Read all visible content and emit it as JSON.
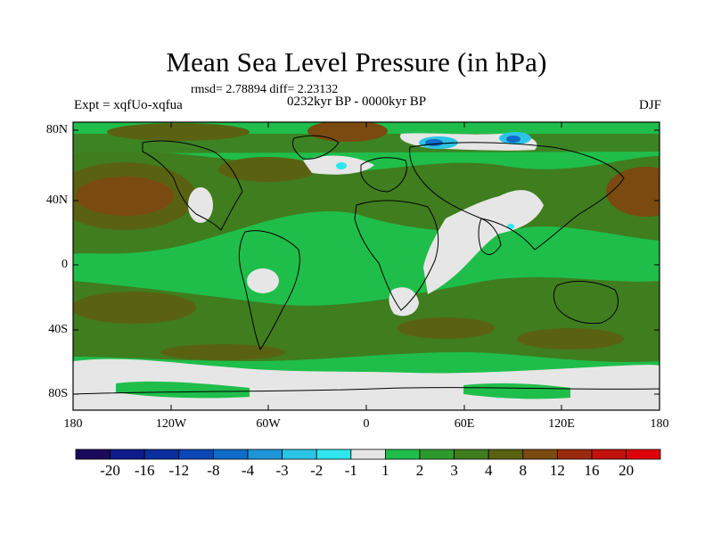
{
  "title": "Mean Sea Level Pressure (in hPa)",
  "stats": "rmsd= 2.78894 diff= 2.23132",
  "experiment": "Expt = xqfUo-xqfua",
  "period": "0232kyr BP - 0000kyr BP",
  "season": "DJF",
  "lat_labels": [
    "80N",
    "40N",
    "0",
    "40S",
    "80S"
  ],
  "lon_labels": [
    "180",
    "120W",
    "60W",
    "0",
    "60E",
    "120E",
    "180"
  ],
  "colorbar_labels": [
    "-20",
    "-16",
    "-12",
    "-8",
    "-4",
    "-3",
    "-2",
    "-1",
    "1",
    "2",
    "3",
    "4",
    "8",
    "12",
    "16",
    "20"
  ],
  "colorbar_colors": [
    "#1a0a5c",
    "#0e1a8a",
    "#0a2e9e",
    "#0b48b5",
    "#0f6cc8",
    "#1e96d8",
    "#2cc4e6",
    "#2fe6ee",
    "#e6e6e6",
    "#1fbe4a",
    "#2e9a2e",
    "#3f7d1f",
    "#5a6212",
    "#7a4a10",
    "#9a2a0e",
    "#c2120e",
    "#e0000a"
  ]
}
